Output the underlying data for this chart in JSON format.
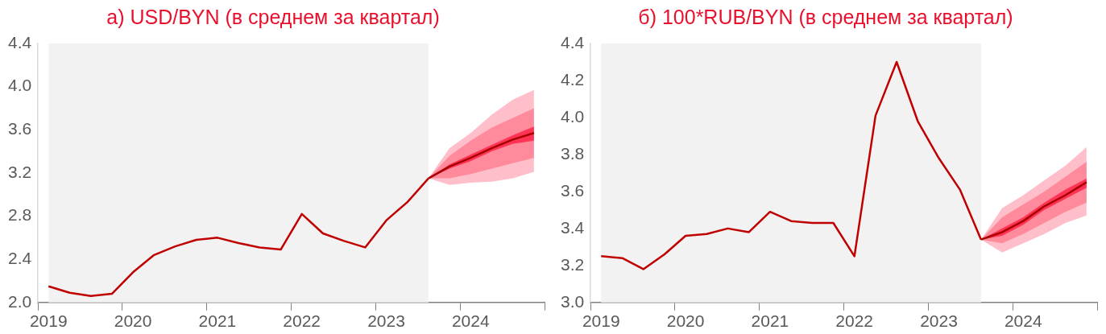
{
  "chart_data": [
    {
      "type": "line",
      "title": "а) USD/BYN (в среднем за квартал)",
      "xlim": [
        2019,
        2025
      ],
      "xticks": [
        {
          "value": 2019,
          "label": null
        },
        {
          "value": 2019.125,
          "label": "2019"
        },
        {
          "value": 2020,
          "label": null
        },
        {
          "value": 2020.125,
          "label": "2020"
        },
        {
          "value": 2021,
          "label": null
        },
        {
          "value": 2021.125,
          "label": "2021"
        },
        {
          "value": 2022,
          "label": null
        },
        {
          "value": 2022.125,
          "label": "2022"
        },
        {
          "value": 2023,
          "label": null
        },
        {
          "value": 2023.125,
          "label": "2023"
        },
        {
          "value": 2024,
          "label": null
        },
        {
          "value": 2024.125,
          "label": "2024"
        },
        {
          "value": 2025,
          "label": null
        }
      ],
      "ylim": [
        2.0,
        4.4
      ],
      "yticks": [
        {
          "value": 2,
          "label": "2.0"
        },
        2.4,
        2.8,
        3.2,
        3.6,
        {
          "value": 4,
          "label": "4.0"
        },
        4.4
      ],
      "grid": false,
      "legend": false,
      "bands": [
        {
          "axis": "x",
          "from": 2019.125,
          "to": 2023.625,
          "color": "#f2f2f2"
        }
      ],
      "series": [
        {
          "type": "line",
          "color": "#ffbfca",
          "x": [
            2023.625,
            2023.875,
            2024.125,
            2024.375,
            2024.625,
            2024.875
          ],
          "values": [
            null,
            null,
            null,
            null,
            null,
            null
          ],
          "lower": [
            3.15,
            3.09,
            3.11,
            3.12,
            3.15,
            3.21
          ],
          "upper": [
            3.15,
            3.43,
            3.57,
            3.74,
            3.88,
            3.97
          ]
        },
        {
          "type": "line",
          "color": "#ff8a9c",
          "x": [
            2023.625,
            2023.875,
            2024.125,
            2024.375,
            2024.625,
            2024.875
          ],
          "values": [
            null,
            null,
            null,
            null,
            null,
            null
          ],
          "lower": [
            3.15,
            3.15,
            3.19,
            3.24,
            3.29,
            3.34
          ],
          "upper": [
            3.15,
            3.36,
            3.5,
            3.62,
            3.71,
            3.8
          ]
        },
        {
          "type": "line",
          "color": "#ff3355",
          "x": [
            2023.625,
            2023.875,
            2024.125,
            2024.375,
            2024.625,
            2024.875
          ],
          "values": [
            null,
            null,
            null,
            null,
            null,
            null
          ],
          "lower": [
            3.15,
            3.24,
            3.31,
            3.4,
            3.47,
            3.5
          ],
          "upper": [
            3.15,
            3.28,
            3.37,
            3.46,
            3.55,
            3.63
          ]
        },
        {
          "type": "line",
          "color": "#c00000",
          "x": [
            2019.125,
            2019.375,
            2019.625,
            2019.875,
            2020.125,
            2020.375,
            2020.625,
            2020.875,
            2021.125,
            2021.375,
            2021.625,
            2021.875,
            2022.125,
            2022.375,
            2022.625,
            2022.875,
            2023.125,
            2023.375,
            2023.625
          ],
          "values": [
            2.15,
            2.09,
            2.06,
            2.08,
            2.28,
            2.44,
            2.52,
            2.58,
            2.6,
            2.55,
            2.51,
            2.49,
            2.82,
            2.64,
            2.57,
            2.51,
            2.76,
            2.93,
            3.15
          ]
        },
        {
          "type": "line",
          "color": "#a80000",
          "x": [
            2023.625,
            2023.875,
            2024.125,
            2024.375,
            2024.625,
            2024.875
          ],
          "values": [
            3.15,
            3.26,
            3.34,
            3.43,
            3.51,
            3.57
          ]
        }
      ]
    },
    {
      "type": "line",
      "title": "б) 100*RUB/BYN (в среднем за квартал)",
      "xlim": [
        2019,
        2025
      ],
      "xticks": [
        {
          "value": 2019,
          "label": null
        },
        {
          "value": 2019.125,
          "label": "2019"
        },
        {
          "value": 2020,
          "label": null
        },
        {
          "value": 2020.125,
          "label": "2020"
        },
        {
          "value": 2021,
          "label": null
        },
        {
          "value": 2021.125,
          "label": "2021"
        },
        {
          "value": 2022,
          "label": null
        },
        {
          "value": 2022.125,
          "label": "2022"
        },
        {
          "value": 2023,
          "label": null
        },
        {
          "value": 2023.125,
          "label": "2023"
        },
        {
          "value": 2024,
          "label": null
        },
        {
          "value": 2024.125,
          "label": "2024"
        },
        {
          "value": 2025,
          "label": null
        }
      ],
      "ylim": [
        3.0,
        4.4
      ],
      "yticks": [
        {
          "value": 3,
          "label": "3.0"
        },
        3.2,
        3.4,
        3.6,
        3.8,
        {
          "value": 4,
          "label": "4.0"
        },
        4.2,
        4.4
      ],
      "grid": false,
      "legend": false,
      "bands": [
        {
          "axis": "x",
          "from": 2019.125,
          "to": 2023.625,
          "color": "#f2f2f2"
        }
      ],
      "series": [
        {
          "type": "line",
          "color": "#ffbfca",
          "x": [
            2023.625,
            2023.875,
            2024.125,
            2024.375,
            2024.625,
            2024.875
          ],
          "values": [
            null,
            null,
            null,
            null,
            null,
            null
          ],
          "lower": [
            3.34,
            3.27,
            3.32,
            3.37,
            3.43,
            3.47
          ],
          "upper": [
            3.34,
            3.51,
            3.58,
            3.66,
            3.74,
            3.84
          ]
        },
        {
          "type": "line",
          "color": "#ff8a9c",
          "x": [
            2023.625,
            2023.875,
            2024.125,
            2024.375,
            2024.625,
            2024.875
          ],
          "values": [
            null,
            null,
            null,
            null,
            null,
            null
          ],
          "lower": [
            3.34,
            3.32,
            3.37,
            3.43,
            3.49,
            3.54
          ],
          "upper": [
            3.34,
            3.46,
            3.53,
            3.6,
            3.68,
            3.76
          ]
        },
        {
          "type": "line",
          "color": "#ff3355",
          "x": [
            2023.625,
            2023.875,
            2024.125,
            2024.375,
            2024.625,
            2024.875
          ],
          "values": [
            null,
            null,
            null,
            null,
            null,
            null
          ],
          "lower": [
            3.34,
            3.36,
            3.42,
            3.5,
            3.56,
            3.62
          ],
          "upper": [
            3.34,
            3.4,
            3.46,
            3.54,
            3.61,
            3.67
          ]
        },
        {
          "type": "line",
          "color": "#c00000",
          "x": [
            2019.125,
            2019.375,
            2019.625,
            2019.875,
            2020.125,
            2020.375,
            2020.625,
            2020.875,
            2021.125,
            2021.375,
            2021.625,
            2021.875,
            2022.125,
            2022.375,
            2022.625,
            2022.875,
            2023.125,
            2023.375,
            2023.625
          ],
          "values": [
            3.25,
            3.24,
            3.18,
            3.26,
            3.36,
            3.37,
            3.4,
            3.38,
            3.49,
            3.44,
            3.43,
            3.43,
            3.25,
            4.01,
            4.3,
            3.98,
            3.78,
            3.61,
            3.34
          ]
        },
        {
          "type": "line",
          "color": "#a80000",
          "x": [
            2023.625,
            2023.875,
            2024.125,
            2024.375,
            2024.625,
            2024.875
          ],
          "values": [
            3.34,
            3.38,
            3.44,
            3.52,
            3.58,
            3.65
          ]
        }
      ]
    }
  ]
}
